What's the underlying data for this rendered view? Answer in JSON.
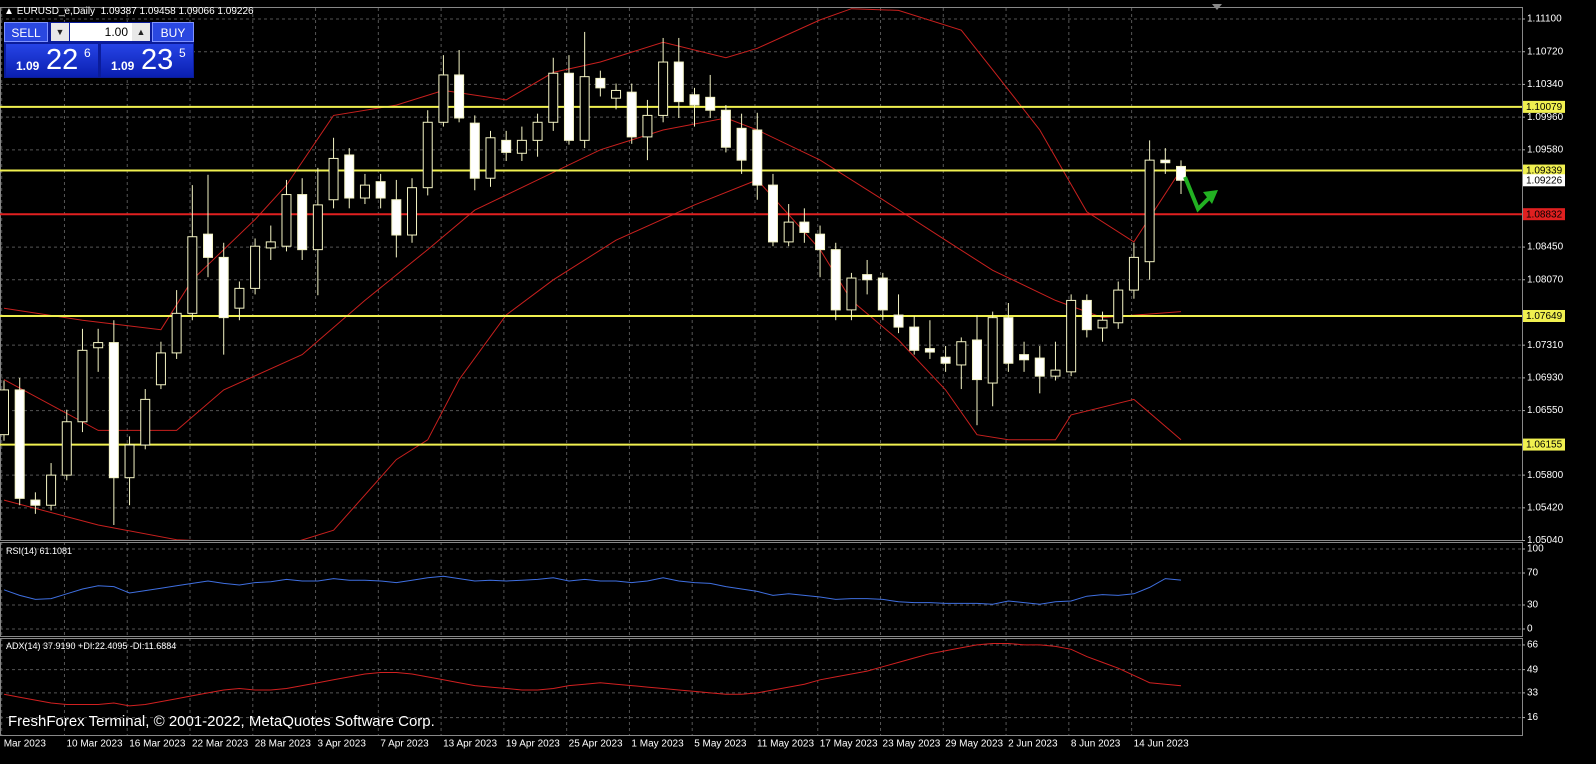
{
  "chart_data": [
    {
      "type": "candlestick",
      "title": "EURUSD_e,Daily",
      "categories": [
        null,
        "Mar 2023",
        null,
        null,
        null,
        "10 Mar 2023",
        null,
        null,
        null,
        "16 Mar 2023",
        null,
        null,
        null,
        "22 Mar 2023",
        null,
        null,
        null,
        "28 Mar 2023",
        null,
        null,
        null,
        "3 Apr 2023",
        null,
        null,
        null,
        "7 Apr 2023",
        null,
        null,
        null,
        "13 Apr 2023",
        null,
        null,
        null,
        "19 Apr 2023",
        null,
        null,
        null,
        "25 Apr 2023",
        null,
        null,
        null,
        "1 May 2023",
        null,
        null,
        null,
        "5 May 2023",
        null,
        null,
        null,
        "11 May 2023",
        null,
        null,
        null,
        "17 May 2023",
        null,
        null,
        null,
        "23 May 2023",
        null,
        null,
        null,
        "29 May 2023",
        null,
        null,
        null,
        "2 Jun 2023",
        null,
        null,
        null,
        "8 Jun 2023",
        null,
        null,
        null,
        "14 Jun 2023",
        null,
        null
      ],
      "open": [
        1.0627,
        1.0679,
        1.0551,
        1.0545,
        1.058,
        1.0642,
        1.0728,
        1.0734,
        1.0577,
        1.0615,
        1.0685,
        1.0722,
        1.0768,
        1.086,
        1.0833,
        1.0774,
        1.0797,
        1.0844,
        1.0846,
        1.0906,
        1.0842,
        1.09,
        1.0952,
        1.0902,
        1.0921,
        1.09,
        1.0859,
        1.0914,
        1.099,
        1.1045,
        1.0989,
        1.0925,
        1.0969,
        1.0954,
        1.0969,
        1.099,
        1.1047,
        1.0969,
        1.1041,
        1.1018,
        1.1025,
        1.0973,
        1.0998,
        1.106,
        1.1022,
        1.1019,
        1.1004,
        1.0983,
        1.0981,
        1.0917,
        1.0851,
        1.0874,
        1.086,
        1.0842,
        1.0772,
        1.0813,
        1.0809,
        1.0766,
        1.0752,
        1.0727,
        1.0717,
        1.0708,
        1.0737,
        1.0687,
        1.0763,
        1.072,
        1.0716,
        1.0695,
        1.07,
        1.0783,
        1.0751,
        1.0757,
        1.0795,
        1.0828,
        1.0946,
        1.09387
      ],
      "high": [
        1.069,
        1.0693,
        1.056,
        1.0594,
        1.0656,
        1.075,
        1.075,
        1.076,
        1.0625,
        1.068,
        1.0735,
        1.0795,
        1.0917,
        1.0929,
        1.085,
        1.0805,
        1.0855,
        1.087,
        1.0923,
        1.0925,
        1.0937,
        1.0972,
        1.096,
        1.093,
        1.093,
        1.0923,
        1.0925,
        1.1004,
        1.1068,
        1.1074,
        1.0998,
        1.098,
        1.098,
        1.0985,
        1.1,
        1.1065,
        1.1068,
        1.1095,
        1.105,
        1.1035,
        1.1035,
        1.1016,
        1.1088,
        1.1088,
        1.103,
        1.1045,
        1.101,
        1.1,
        1.1001,
        1.093,
        1.0895,
        1.089,
        1.087,
        1.085,
        1.0815,
        1.083,
        1.0815,
        1.079,
        1.0765,
        1.076,
        1.073,
        1.074,
        1.0766,
        1.077,
        1.078,
        1.0735,
        1.073,
        1.0735,
        1.079,
        1.079,
        1.077,
        1.0805,
        1.085,
        1.0969,
        1.096,
        1.09458
      ],
      "low": [
        1.062,
        1.0545,
        1.0535,
        1.0539,
        1.0574,
        1.063,
        1.07,
        1.0522,
        1.0545,
        1.061,
        1.068,
        1.0715,
        1.076,
        1.081,
        1.072,
        1.076,
        1.079,
        1.083,
        1.084,
        1.083,
        1.0789,
        1.089,
        1.089,
        1.0895,
        1.089,
        1.0833,
        1.085,
        1.0905,
        1.0985,
        1.099,
        1.0911,
        1.0915,
        1.0945,
        1.0945,
        1.095,
        1.098,
        1.0964,
        1.096,
        1.102,
        1.1005,
        1.0965,
        1.0946,
        1.099,
        1.0995,
        1.0985,
        1.0995,
        1.0955,
        1.093,
        1.09,
        1.0846,
        1.0846,
        1.085,
        1.081,
        1.076,
        1.076,
        1.079,
        1.076,
        1.0745,
        1.072,
        1.0715,
        1.07,
        1.068,
        1.0638,
        1.066,
        1.07,
        1.07,
        1.0675,
        1.069,
        1.0695,
        1.074,
        1.0735,
        1.075,
        1.0785,
        1.0807,
        1.093,
        1.09066
      ],
      "close": [
        1.0679,
        1.0553,
        1.0545,
        1.058,
        1.0642,
        1.0725,
        1.0734,
        1.0577,
        1.0615,
        1.0668,
        1.0722,
        1.0768,
        1.0857,
        1.0833,
        1.0763,
        1.0797,
        1.0846,
        1.0851,
        1.0906,
        1.0842,
        1.0894,
        1.0948,
        1.0902,
        1.0917,
        1.0902,
        1.0859,
        1.0914,
        1.099,
        1.1045,
        1.0995,
        1.0925,
        1.0972,
        1.0955,
        1.0969,
        1.099,
        1.1047,
        1.0969,
        1.1043,
        1.103,
        1.1027,
        1.0973,
        1.0998,
        1.106,
        1.1014,
        1.101,
        1.1004,
        1.0961,
        1.0946,
        1.0917,
        1.0851,
        1.0874,
        1.0862,
        1.0842,
        1.0772,
        1.0809,
        1.0807,
        1.0772,
        1.0752,
        1.0725,
        1.0723,
        1.071,
        1.0735,
        1.0691,
        1.0763,
        1.071,
        1.0714,
        1.0695,
        1.0702,
        1.0783,
        1.0749,
        1.076,
        1.0795,
        1.0833,
        1.0946,
        1.0943,
        1.09226
      ],
      "up_color": "#000000",
      "down_color": "#ffffff",
      "wick_color": "#f4f4c4",
      "ylim": [
        1.05046,
        1.11228
      ],
      "yticks": [
        {
          "value": 1.111,
          "label": "1.11100"
        },
        {
          "value": 1.1072,
          "label": "1.10720"
        },
        {
          "value": 1.1034,
          "label": "1.10340"
        },
        {
          "value": 1.0996,
          "label": "1.09960"
        },
        {
          "value": 1.0958,
          "label": "1.09580"
        },
        {
          "value": 1.0845,
          "label": "1.08450"
        },
        {
          "value": 1.0807,
          "label": "1.08070"
        },
        {
          "value": 1.0731,
          "label": "1.07310"
        },
        {
          "value": 1.0693,
          "label": "1.06930"
        },
        {
          "value": 1.0655,
          "label": "1.06550"
        },
        {
          "value": 1.058,
          "label": "1.05800"
        },
        {
          "value": 1.0542,
          "label": "1.05420"
        },
        {
          "value": 1.0504,
          "label": "1.05040"
        }
      ],
      "grid": true,
      "bands": [
        {
          "color": "#c8201e",
          "x": [
            0,
            5,
            10,
            12,
            16,
            18,
            21,
            25,
            28,
            32,
            35,
            38,
            42,
            46,
            48,
            52,
            54,
            57,
            61,
            63,
            66,
            69,
            72,
            75
          ],
          "values": [
            1.0774,
            1.076,
            1.0749,
            1.0807,
            1.0877,
            1.0917,
            1.0998,
            1.101,
            1.1027,
            1.1016,
            1.1048,
            1.106,
            1.1083,
            1.1065,
            1.1076,
            1.1109,
            1.1122,
            1.112,
            1.1097,
            1.1051,
            1.0981,
            1.0886,
            1.0851,
            1.0935
          ]
        },
        {
          "color": "#c8201e",
          "x": [
            0,
            6,
            11,
            14,
            19,
            23,
            27,
            30,
            34,
            38,
            42,
            46,
            48,
            52,
            56,
            60,
            63,
            67,
            70,
            75
          ],
          "values": [
            1.0691,
            1.0632,
            1.0632,
            1.0679,
            1.072,
            1.0783,
            1.0842,
            1.0888,
            1.0923,
            1.0958,
            1.0981,
            1.0995,
            1.0981,
            1.0946,
            1.09,
            1.0853,
            1.0818,
            1.0783,
            1.0763,
            1.077
          ]
        },
        {
          "color": "#c8201e",
          "x": [
            0,
            6,
            11,
            18,
            21,
            25,
            27,
            29,
            32,
            35,
            39,
            44,
            48,
            52,
            54,
            57,
            60,
            62,
            64,
            67,
            68,
            72,
            75
          ],
          "values": [
            1.0551,
            1.0522,
            1.0505,
            1.0499,
            1.0516,
            1.0598,
            1.0621,
            1.0691,
            1.0766,
            1.0807,
            1.0853,
            1.0894,
            1.0923,
            1.0842,
            1.0783,
            1.0737,
            1.0679,
            1.0627,
            1.0621,
            1.0621,
            1.065,
            1.0668,
            1.0621
          ]
        }
      ],
      "levels": [
        {
          "value": 1.10079,
          "color": "#f0f050"
        },
        {
          "value": 1.09339,
          "color": "#f0f050"
        },
        {
          "value": 1.08832,
          "color": "#e02020"
        },
        {
          "value": 1.07649,
          "color": "#f0f050"
        },
        {
          "value": 1.06155,
          "color": "#f0f050"
        }
      ],
      "current_price_color": "#ffffff"
    },
    {
      "type": "line",
      "title": "RSI(14)",
      "series": [
        {
          "color": "#3f6fe0",
          "values": [
            49,
            42,
            37,
            38,
            44,
            50,
            54,
            53,
            45,
            48,
            51,
            54,
            57,
            60,
            57,
            55,
            58,
            59,
            62,
            60,
            60,
            63,
            61,
            61,
            60,
            58,
            61,
            64,
            66,
            63,
            60,
            61,
            60,
            61,
            62,
            64,
            60,
            62,
            60,
            60,
            58,
            60,
            64,
            60,
            58,
            57,
            53,
            50,
            47,
            42,
            44,
            42,
            40,
            37,
            38,
            38,
            37,
            34,
            33,
            33,
            32,
            32,
            32,
            31,
            35,
            33,
            31,
            34,
            35,
            41,
            43,
            42,
            44,
            52,
            63,
            61.1081
          ]
        }
      ],
      "ylim": [
        -8.75,
        107.5
      ],
      "yticks": [
        100,
        70,
        30,
        0
      ],
      "grid": true
    },
    {
      "type": "line",
      "title": "ADX(14)",
      "series": [
        {
          "color": "#d02020",
          "values": [
            32,
            30,
            28,
            26,
            25,
            25,
            25,
            26,
            24,
            25,
            27,
            29,
            31,
            33,
            35,
            36,
            35,
            35,
            36,
            38,
            40,
            42,
            44,
            46,
            47,
            47,
            46,
            44,
            42,
            40,
            38,
            37,
            36,
            35,
            35,
            36,
            38,
            39,
            40,
            39,
            38,
            37,
            36,
            35,
            34,
            33,
            32,
            32,
            33,
            35,
            37,
            39,
            42,
            44,
            46,
            48,
            51,
            54,
            57,
            60,
            62,
            64,
            66,
            67,
            67,
            66,
            66,
            65,
            63,
            58,
            54,
            50,
            45,
            40,
            39,
            37.919
          ],
          "value_labels": [
            null,
            null,
            null,
            null,
            null,
            null,
            null,
            null,
            null,
            null,
            null,
            null,
            null,
            null,
            null,
            null,
            null,
            null,
            null,
            null,
            null,
            null,
            null,
            null,
            null,
            null,
            null,
            null,
            null,
            null,
            null,
            null,
            null,
            null,
            null,
            null,
            null,
            null,
            null,
            null,
            null,
            null,
            null,
            null,
            null,
            null,
            null,
            null,
            null,
            null,
            null,
            null,
            null,
            null,
            null,
            null,
            null,
            null,
            null,
            null,
            null,
            null,
            null,
            null,
            null,
            null,
            null,
            null,
            null,
            null,
            null,
            null,
            null,
            null,
            null,
            "37.9190"
          ]
        }
      ],
      "readings": [
        {
          "name": "+DI:",
          "value": 22.4095
        },
        {
          "name": "-DI:",
          "value": 11.6884
        }
      ],
      "ylim": [
        4,
        69.4
      ],
      "yticks": [
        66,
        49,
        33,
        16
      ],
      "grid": true
    }
  ],
  "trade_panel": {
    "sell": "SELL",
    "buy": "BUY",
    "lot": "1.00",
    "bid": {
      "big": "1.09",
      "main": "22",
      "sup": "6"
    },
    "ask": {
      "big": "1.09",
      "main": "23",
      "sup": "5"
    }
  },
  "watermark": "FreshForex Terminal, © 2001-2022, MetaQuotes Software Corp."
}
